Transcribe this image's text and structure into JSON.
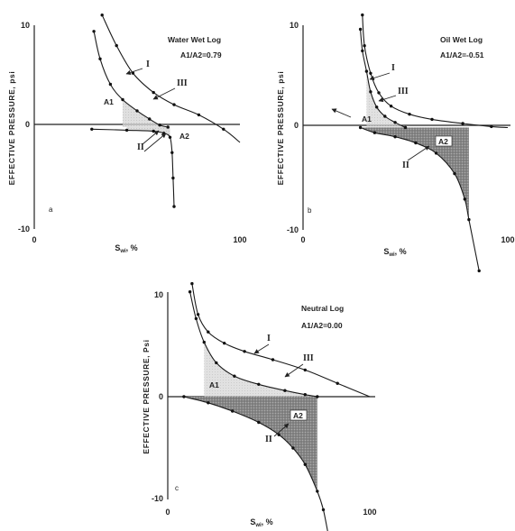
{
  "chart_data": [
    {
      "type": "line",
      "panel_letter": "a",
      "title": "Water Wet Log",
      "ratio_label": "A1/A2=0.79",
      "ylabel": "EFFECTIVE PRESSURE, psi",
      "xlabel_main": "S",
      "xlabel_sub": "wi",
      "xlabel_tail": ", %",
      "xlim": [
        0,
        100
      ],
      "ylim": [
        -10,
        10
      ],
      "xticks": [
        "0",
        "100"
      ],
      "yticks": [
        "10",
        "0",
        "-10"
      ],
      "curve_labels": [
        "I",
        "III",
        "II"
      ],
      "area_labels": [
        "A1",
        "A2"
      ],
      "series": [
        {
          "name": "I",
          "x": [
            33,
            40,
            48,
            58,
            68,
            80,
            92,
            100
          ],
          "y": [
            11,
            8,
            5.3,
            3.4,
            2.2,
            1.2,
            -0.2,
            -1.5
          ]
        },
        {
          "name": "III",
          "x": [
            29,
            32,
            37,
            43,
            50,
            56,
            61,
            65
          ],
          "y": [
            9.4,
            6.7,
            4.2,
            2.7,
            1.6,
            0.8,
            0.2,
            0
          ]
        },
        {
          "name": "II",
          "x": [
            28,
            45,
            58,
            63,
            66,
            67,
            67.5,
            68
          ],
          "y": [
            -0.2,
            -0.3,
            -0.4,
            -0.6,
            -1.0,
            -2.5,
            -5,
            -7.8
          ]
        }
      ]
    },
    {
      "type": "line",
      "panel_letter": "b",
      "title": "Oil Wet Log",
      "ratio_label": "A1/A2=-0.51",
      "ylabel": "EFFECTIVE PRESSURE, psi",
      "xlabel_main": "S",
      "xlabel_sub": "wi",
      "xlabel_tail": ", %",
      "xlim": [
        0,
        100
      ],
      "ylim": [
        -10,
        10
      ],
      "xticks": [
        "0",
        "100"
      ],
      "yticks": [
        "10",
        "0",
        "-10"
      ],
      "curve_labels": [
        "I",
        "III",
        "II"
      ],
      "area_labels": [
        "A1",
        "A2"
      ],
      "series": [
        {
          "name": "I",
          "x": [
            29,
            30,
            33,
            37,
            43,
            52,
            63,
            78,
            92,
            100
          ],
          "y": [
            11,
            8,
            5.3,
            3.4,
            2.1,
            1.3,
            0.8,
            0.4,
            0.1,
            0
          ]
        },
        {
          "name": "III",
          "x": [
            28,
            29,
            31,
            33,
            36,
            40,
            45,
            50
          ],
          "y": [
            9.6,
            7.5,
            5.5,
            3.5,
            2.0,
            1.1,
            0.5,
            0
          ]
        },
        {
          "name": "II",
          "x": [
            28,
            35,
            45,
            55,
            65,
            74,
            79,
            81,
            86
          ],
          "y": [
            0,
            -0.5,
            -0.9,
            -1.5,
            -2.5,
            -4.5,
            -7,
            -9,
            -14
          ]
        }
      ]
    },
    {
      "type": "line",
      "panel_letter": "c",
      "title": "Neutral Log",
      "ratio_label": "A1/A2=0.00",
      "ylabel": "EFFECTIVE PRESSURE, Psi",
      "xlabel_main": "S",
      "xlabel_sub": "wi",
      "xlabel_tail": ", %",
      "xlim": [
        0,
        100
      ],
      "ylim": [
        -10,
        10
      ],
      "xticks": [
        "0",
        "100"
      ],
      "yticks": [
        "10",
        "0",
        "-10"
      ],
      "curve_labels": [
        "I",
        "III",
        "II"
      ],
      "area_labels": [
        "A1",
        "A2"
      ],
      "series": [
        {
          "name": "I",
          "x": [
            12,
            15,
            20,
            28,
            38,
            52,
            68,
            84,
            100
          ],
          "y": [
            11,
            8,
            6.3,
            5.2,
            4.4,
            3.6,
            2.6,
            1.3,
            0
          ]
        },
        {
          "name": "III",
          "x": [
            11,
            14,
            18,
            24,
            33,
            45,
            58,
            68,
            74
          ],
          "y": [
            10.2,
            7.6,
            5.3,
            3.3,
            2.0,
            1.2,
            0.6,
            0.2,
            0
          ]
        },
        {
          "name": "II",
          "x": [
            8,
            20,
            32,
            45,
            55,
            62,
            68,
            74,
            77,
            80
          ],
          "y": [
            0,
            -0.6,
            -1.4,
            -2.5,
            -3.7,
            -5.0,
            -6.6,
            -9.2,
            -11,
            -14
          ]
        }
      ]
    }
  ]
}
